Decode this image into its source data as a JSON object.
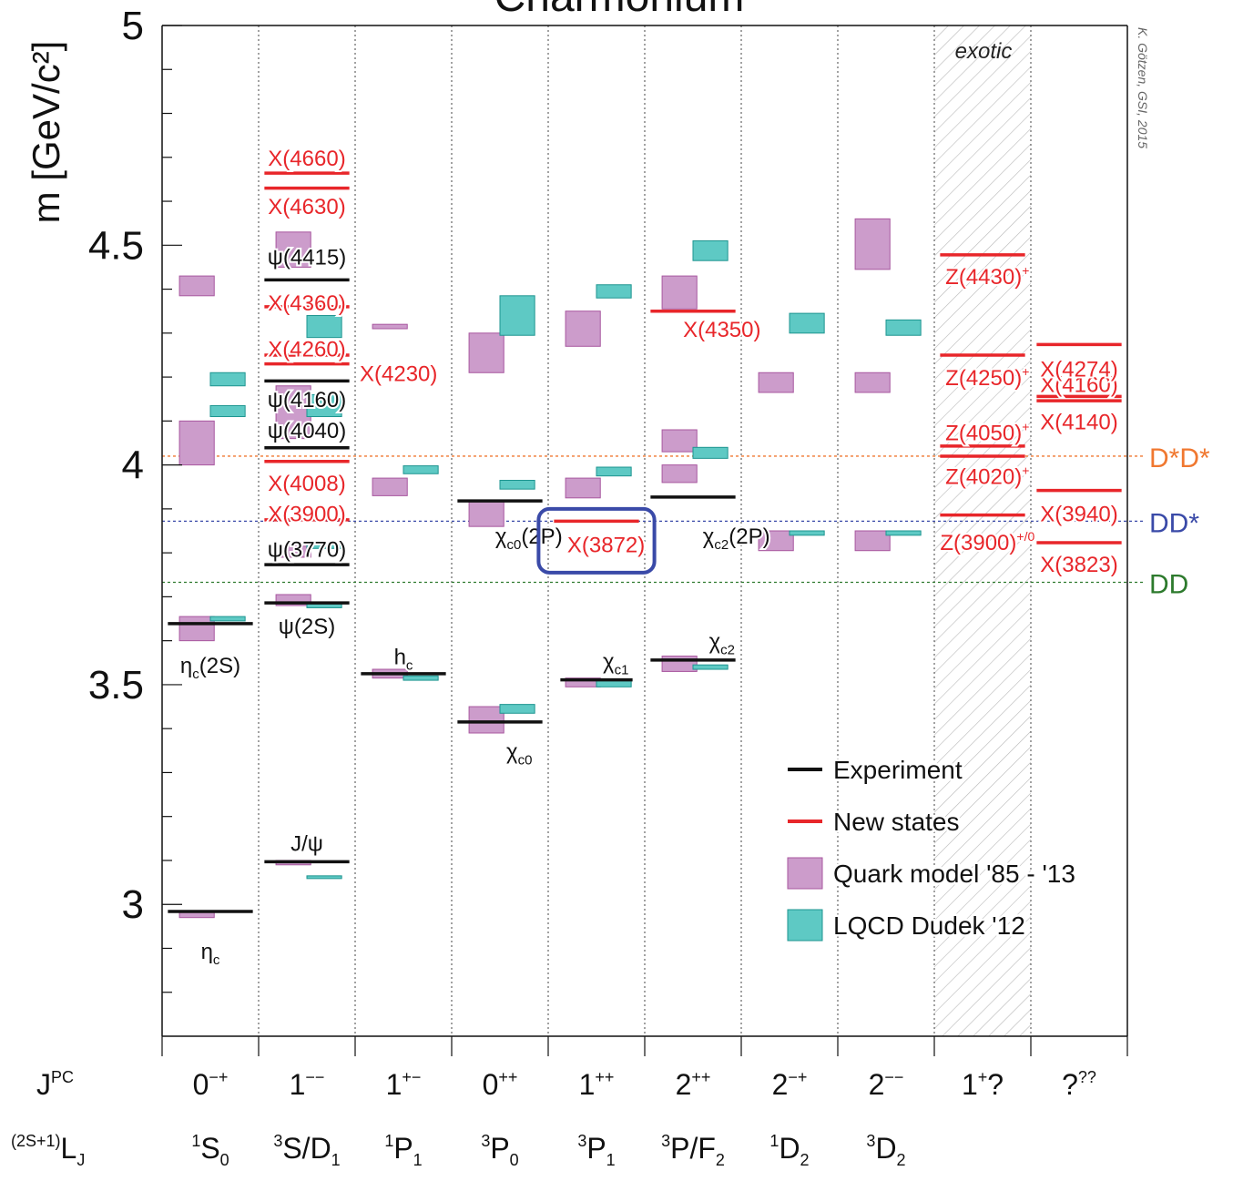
{
  "chart_data": {
    "type": "spectrum",
    "title": "Charmonium",
    "ylabel": "m [GeV/c²]",
    "ylim": [
      2.7,
      5.0
    ],
    "yticks": [
      3,
      3.5,
      4,
      4.5,
      5
    ],
    "ytick_labels": [
      "3",
      "3.5",
      "4",
      "4.5",
      "5"
    ],
    "credit": "K. Götzen, GSI, 2015",
    "row_labels": {
      "jpc": "J",
      "jpc_sup": "PC",
      "term": "L",
      "term_pre": "(2S+1)",
      "term_sub": "J"
    },
    "columns": [
      {
        "jpc": "0",
        "jpc_sup": "−+",
        "term_sup": "1",
        "term": "S",
        "term_sub": "0"
      },
      {
        "jpc": "1",
        "jpc_sup": "−−",
        "term_sup": "3",
        "term": "S/D",
        "term_sub": "1"
      },
      {
        "jpc": "1",
        "jpc_sup": "+−",
        "term_sup": "1",
        "term": "P",
        "term_sub": "1"
      },
      {
        "jpc": "0",
        "jpc_sup": "++",
        "term_sup": "3",
        "term": "P",
        "term_sub": "0"
      },
      {
        "jpc": "1",
        "jpc_sup": "++",
        "term_sup": "3",
        "term": "P",
        "term_sub": "1"
      },
      {
        "jpc": "2",
        "jpc_sup": "++",
        "term_sup": "3",
        "term": "P/F",
        "term_sub": "2"
      },
      {
        "jpc": "2",
        "jpc_sup": "−+",
        "term_sup": "1",
        "term": "D",
        "term_sub": "2"
      },
      {
        "jpc": "2",
        "jpc_sup": "−−",
        "term_sup": "3",
        "term": "D",
        "term_sub": "2"
      },
      {
        "jpc": "1",
        "jpc_sup": "+",
        "jpc_tail": "?",
        "term_sup": "",
        "term": "",
        "term_sub": ""
      },
      {
        "jpc": "?",
        "jpc_sup": "??",
        "term_sup": "",
        "term": "",
        "term_sub": ""
      }
    ],
    "exotic_label": "exotic",
    "exotic_column": 8,
    "thresholds": [
      {
        "name": "D*D*",
        "mass": 4.02,
        "color": "#f07830"
      },
      {
        "name": "DD*",
        "mass": 3.872,
        "color": "#3a4aa8"
      },
      {
        "name": "DD",
        "mass": 3.733,
        "color": "#2d7a2d"
      }
    ],
    "colors": {
      "experiment": "#111111",
      "new": "#e8262a",
      "quark": "#cc9ccb",
      "quark_edge": "#a8579f",
      "lqcd": "#5ec9c4",
      "lqcd_edge": "#1e9590",
      "highlight": "#3a4aa8"
    },
    "experiment": [
      {
        "col": 0,
        "mass": 2.984,
        "width": 1.0
      },
      {
        "col": 0,
        "mass": 3.639,
        "width": 1.0
      },
      {
        "col": 1,
        "mass": 3.097,
        "width": 1.0
      },
      {
        "col": 1,
        "mass": 3.686,
        "width": 1.0
      },
      {
        "col": 1,
        "mass": 3.773,
        "width": 1.0
      },
      {
        "col": 1,
        "mass": 4.039,
        "width": 1.0
      },
      {
        "col": 1,
        "mass": 4.191,
        "width": 1.0
      },
      {
        "col": 1,
        "mass": 4.421,
        "width": 1.0
      },
      {
        "col": 2,
        "mass": 3.525,
        "width": 1.0
      },
      {
        "col": 3,
        "mass": 3.415,
        "width": 1.0
      },
      {
        "col": 3,
        "mass": 3.918,
        "width": 1.0
      },
      {
        "col": 4,
        "mass": 3.511,
        "width": 0.85
      },
      {
        "col": 5,
        "mass": 3.556,
        "width": 1.0
      },
      {
        "col": 5,
        "mass": 3.927,
        "width": 1.0
      }
    ],
    "new_states": [
      {
        "col": 1,
        "mass": 3.875,
        "width": 1.0
      },
      {
        "col": 1,
        "mass": 4.008,
        "width": 1.0
      },
      {
        "col": 1,
        "mass": 4.23,
        "width": 1.0
      },
      {
        "col": 1,
        "mass": 4.25,
        "width": 1.0
      },
      {
        "col": 1,
        "mass": 4.36,
        "width": 1.0
      },
      {
        "col": 1,
        "mass": 4.63,
        "width": 1.0
      },
      {
        "col": 1,
        "mass": 4.664,
        "width": 1.0
      },
      {
        "col": 4,
        "mass": 3.872,
        "width": 1.0
      },
      {
        "col": 5,
        "mass": 4.35,
        "width": 1.0
      },
      {
        "col": 8,
        "mass": 3.886,
        "width": 1.0
      },
      {
        "col": 8,
        "mass": 4.02,
        "width": 1.0
      },
      {
        "col": 8,
        "mass": 4.043,
        "width": 1.0
      },
      {
        "col": 8,
        "mass": 4.25,
        "width": 1.0
      },
      {
        "col": 8,
        "mass": 4.478,
        "width": 1.0
      },
      {
        "col": 9,
        "mass": 3.823,
        "width": 1.0
      },
      {
        "col": 9,
        "mass": 3.942,
        "width": 1.0
      },
      {
        "col": 9,
        "mass": 4.146,
        "width": 1.0
      },
      {
        "col": 9,
        "mass": 4.156,
        "width": 1.0
      },
      {
        "col": 9,
        "mass": 4.274,
        "width": 1.0
      }
    ],
    "quark_model": [
      {
        "col": 0,
        "lo": 2.97,
        "hi": 2.985
      },
      {
        "col": 0,
        "lo": 3.6,
        "hi": 3.655
      },
      {
        "col": 0,
        "lo": 4.0,
        "hi": 4.1
      },
      {
        "col": 0,
        "lo": 4.385,
        "hi": 4.43
      },
      {
        "col": 1,
        "lo": 3.09,
        "hi": 3.1
      },
      {
        "col": 1,
        "lo": 3.68,
        "hi": 3.705
      },
      {
        "col": 1,
        "lo": 3.79,
        "hi": 3.815
      },
      {
        "col": 1,
        "lo": 4.06,
        "hi": 4.18
      },
      {
        "col": 1,
        "lo": 4.45,
        "hi": 4.53
      },
      {
        "col": 2,
        "lo": 3.515,
        "hi": 3.535
      },
      {
        "col": 2,
        "lo": 3.93,
        "hi": 3.97
      },
      {
        "col": 2,
        "lo": 4.31,
        "hi": 4.32
      },
      {
        "col": 3,
        "lo": 3.39,
        "hi": 3.45
      },
      {
        "col": 3,
        "lo": 3.86,
        "hi": 3.92
      },
      {
        "col": 3,
        "lo": 4.21,
        "hi": 4.3
      },
      {
        "col": 4,
        "lo": 3.495,
        "hi": 3.515
      },
      {
        "col": 4,
        "lo": 3.925,
        "hi": 3.97
      },
      {
        "col": 4,
        "lo": 4.27,
        "hi": 4.35
      },
      {
        "col": 5,
        "lo": 3.53,
        "hi": 3.565
      },
      {
        "col": 5,
        "lo": 3.96,
        "hi": 4.0
      },
      {
        "col": 5,
        "lo": 4.03,
        "hi": 4.08
      },
      {
        "col": 5,
        "lo": 4.355,
        "hi": 4.43
      },
      {
        "col": 6,
        "lo": 3.805,
        "hi": 3.85
      },
      {
        "col": 6,
        "lo": 4.165,
        "hi": 4.21
      },
      {
        "col": 7,
        "lo": 3.805,
        "hi": 3.85
      },
      {
        "col": 7,
        "lo": 4.165,
        "hi": 4.21
      },
      {
        "col": 7,
        "lo": 4.445,
        "hi": 4.56
      }
    ],
    "lqcd": [
      {
        "col": 0,
        "lo": 3.645,
        "hi": 3.655
      },
      {
        "col": 0,
        "lo": 4.11,
        "hi": 4.135
      },
      {
        "col": 0,
        "lo": 4.18,
        "hi": 4.21
      },
      {
        "col": 1,
        "lo": 3.06,
        "hi": 3.065
      },
      {
        "col": 1,
        "lo": 3.675,
        "hi": 3.685
      },
      {
        "col": 1,
        "lo": 3.81,
        "hi": 3.82
      },
      {
        "col": 1,
        "lo": 4.11,
        "hi": 4.16
      },
      {
        "col": 1,
        "lo": 4.29,
        "hi": 4.34
      },
      {
        "col": 2,
        "lo": 3.51,
        "hi": 3.52
      },
      {
        "col": 2,
        "lo": 3.98,
        "hi": 3.998
      },
      {
        "col": 3,
        "lo": 3.435,
        "hi": 3.455
      },
      {
        "col": 3,
        "lo": 3.945,
        "hi": 3.965
      },
      {
        "col": 3,
        "lo": 4.295,
        "hi": 4.385
      },
      {
        "col": 4,
        "lo": 3.495,
        "hi": 3.51
      },
      {
        "col": 4,
        "lo": 3.975,
        "hi": 3.995
      },
      {
        "col": 4,
        "lo": 4.38,
        "hi": 4.41
      },
      {
        "col": 5,
        "lo": 3.535,
        "hi": 3.545
      },
      {
        "col": 5,
        "lo": 4.015,
        "hi": 4.04
      },
      {
        "col": 5,
        "lo": 4.465,
        "hi": 4.51
      },
      {
        "col": 6,
        "lo": 3.84,
        "hi": 3.85
      },
      {
        "col": 6,
        "lo": 4.3,
        "hi": 4.345
      },
      {
        "col": 7,
        "lo": 3.84,
        "hi": 3.85
      },
      {
        "col": 7,
        "lo": 4.295,
        "hi": 4.33
      }
    ],
    "state_labels": [
      {
        "text": "η",
        "sub": "c",
        "col": 0,
        "mass": 2.895,
        "color": "black"
      },
      {
        "text": "η",
        "sub": "c",
        "tail": "(2S)",
        "col": 0,
        "mass": 3.545,
        "color": "black"
      },
      {
        "text": "J/ψ",
        "col": 1,
        "mass": 3.14,
        "color": "black"
      },
      {
        "text": "ψ(2S)",
        "col": 1,
        "mass": 3.635,
        "color": "black"
      },
      {
        "text": "ψ(3770)",
        "col": 1,
        "mass": 3.81,
        "color": "black"
      },
      {
        "text": "X(3900)",
        "col": 1,
        "mass": 3.89,
        "color": "red"
      },
      {
        "text": "X(4008)",
        "col": 1,
        "mass": 3.96,
        "color": "red"
      },
      {
        "text": "ψ(4040)",
        "col": 1,
        "mass": 4.08,
        "color": "black"
      },
      {
        "text": "ψ(4160)",
        "col": 1,
        "mass": 4.15,
        "color": "black"
      },
      {
        "text": "X(4260)",
        "col": 1,
        "mass": 4.265,
        "color": "red"
      },
      {
        "text": "X(4230)",
        "col": 1.95,
        "mass": 4.21,
        "color": "red"
      },
      {
        "text": "X(4360)",
        "col": 1,
        "mass": 4.37,
        "color": "red"
      },
      {
        "text": "ψ(4415)",
        "col": 1,
        "mass": 4.475,
        "color": "black"
      },
      {
        "text": "X(4630)",
        "col": 1,
        "mass": 4.59,
        "color": "red"
      },
      {
        "text": "X(4660)",
        "col": 1,
        "mass": 4.7,
        "color": "red"
      },
      {
        "text": "h",
        "sub": "c",
        "col": 2,
        "mass": 3.565,
        "color": "black"
      },
      {
        "text": "χ",
        "sub": "c0",
        "col": 3.2,
        "mass": 3.35,
        "color": "black"
      },
      {
        "text": "χ",
        "sub": "c0",
        "tail": "(2P)",
        "col": 3.3,
        "mass": 3.84,
        "color": "black"
      },
      {
        "text": "χ",
        "sub": "c1",
        "col": 4.2,
        "mass": 3.555,
        "color": "black"
      },
      {
        "text": "X(3872)",
        "col": 4.1,
        "mass": 3.82,
        "color": "red"
      },
      {
        "text": "χ",
        "sub": "c2",
        "col": 5.3,
        "mass": 3.6,
        "color": "black"
      },
      {
        "text": "χ",
        "sub": "c2",
        "tail": "(2P)",
        "col": 5.45,
        "mass": 3.84,
        "color": "black"
      },
      {
        "text": "X(4350)",
        "col": 5.3,
        "mass": 4.31,
        "color": "red"
      },
      {
        "text": "Z(3900)",
        "sup": "+/0",
        "col": 8.05,
        "mass": 3.825,
        "color": "red"
      },
      {
        "text": "Z(4020)",
        "sup": "+",
        "col": 8.05,
        "mass": 3.975,
        "color": "red"
      },
      {
        "text": "Z(4050)",
        "sup": "+",
        "col": 8.05,
        "mass": 4.075,
        "color": "red"
      },
      {
        "text": "Z(4250)",
        "sup": "+",
        "col": 8.05,
        "mass": 4.2,
        "color": "red"
      },
      {
        "text": "Z(4430)",
        "sup": "+",
        "col": 8.05,
        "mass": 4.43,
        "color": "red"
      },
      {
        "text": "X(3823)",
        "col": 9.0,
        "mass": 3.775,
        "color": "red"
      },
      {
        "text": "X(3940)",
        "col": 9.0,
        "mass": 3.89,
        "color": "red"
      },
      {
        "text": "X(4140)",
        "col": 9.0,
        "mass": 4.1,
        "color": "red"
      },
      {
        "text": "X(4160)",
        "col": 9.0,
        "mass": 4.185,
        "color": "red"
      },
      {
        "text": "X(4274)",
        "col": 9.0,
        "mass": 4.22,
        "color": "red"
      }
    ],
    "highlight_box": {
      "col": 4,
      "lo": 3.755,
      "hi": 3.9
    },
    "legend": [
      {
        "label": "Experiment",
        "kind": "line-black"
      },
      {
        "label": "New states",
        "kind": "line-red"
      },
      {
        "label": "Quark model '85 - '13",
        "kind": "box-quark"
      },
      {
        "label": "LQCD Dudek '12",
        "kind": "box-lqcd"
      }
    ],
    "legend_position": "bottom-right",
    "grid": false
  }
}
